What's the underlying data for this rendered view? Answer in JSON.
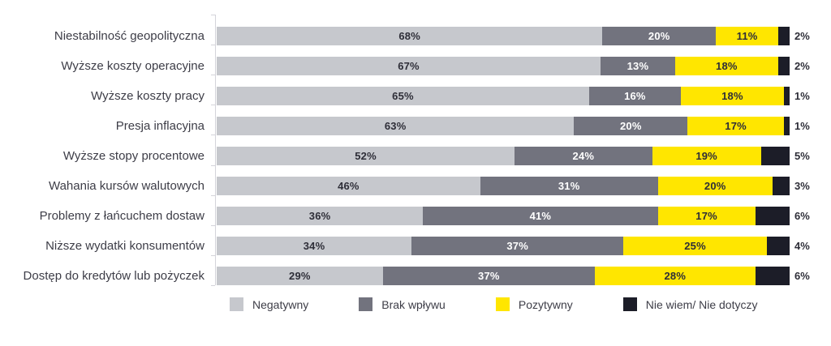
{
  "chart_data": {
    "type": "bar",
    "variant": "horizontal-stacked",
    "title": "",
    "xlabel": "",
    "ylabel": "",
    "xlim": [
      0,
      100
    ],
    "grid": false,
    "legend_position": "bottom",
    "value_suffix": "%",
    "categories": [
      "Niestabilność geopolityczna",
      "Wyższe koszty operacyjne",
      "Wyższe koszty pracy",
      "Presja inflacyjna",
      "Wyższe stopy procentowe",
      "Wahania kursów walutowych",
      "Problemy z łańcuchem dostaw",
      "Niższe wydatki konsumentów",
      "Dostęp do kredytów lub pożyczek"
    ],
    "series": [
      {
        "name": "Negatywny",
        "color": "#c6c8cd",
        "text_color": "#2e2e38",
        "label_placement": "inside",
        "values": [
          68,
          67,
          65,
          63,
          52,
          46,
          36,
          34,
          29
        ]
      },
      {
        "name": "Brak wpływu",
        "color": "#72737e",
        "text_color": "#ffffff",
        "label_placement": "inside",
        "values": [
          20,
          13,
          16,
          20,
          24,
          31,
          41,
          37,
          37
        ]
      },
      {
        "name": "Pozytywny",
        "color": "#ffe600",
        "text_color": "#2e2e38",
        "label_placement": "inside",
        "values": [
          11,
          18,
          18,
          17,
          19,
          20,
          17,
          25,
          28
        ]
      },
      {
        "name": "Nie wiem/ Nie dotyczy",
        "color": "#1c1d28",
        "text_color": "#2e2e38",
        "label_placement": "outside",
        "values": [
          2,
          2,
          1,
          1,
          5,
          3,
          6,
          4,
          6
        ]
      }
    ]
  }
}
